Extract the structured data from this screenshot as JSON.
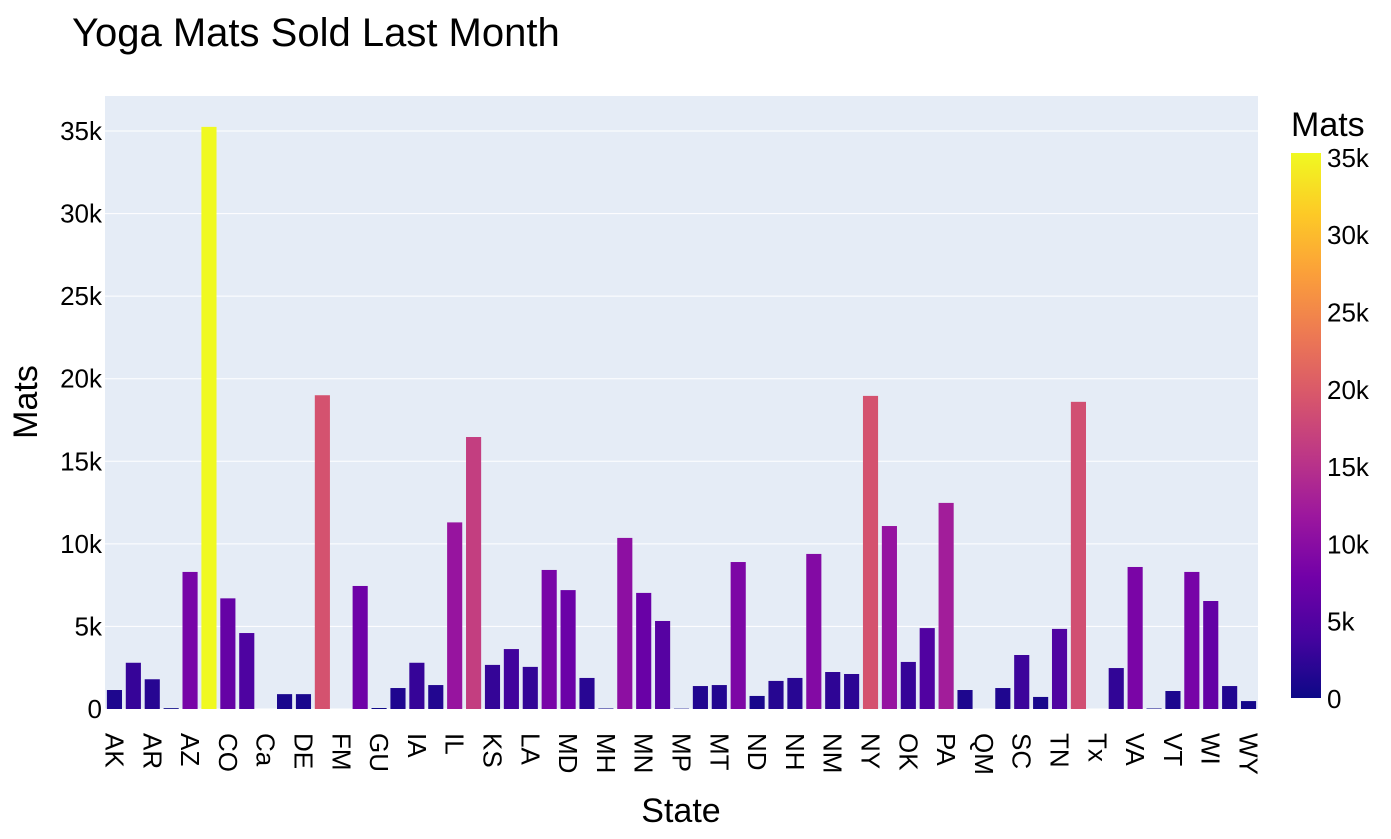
{
  "chart_data": {
    "type": "bar",
    "title": "Yoga Mats Sold Last Month",
    "x_label": "State",
    "y_label": "Mats",
    "categories": [
      "AK",
      null,
      "AR",
      null,
      "AZ",
      null,
      "CO",
      null,
      "Ca",
      null,
      "DE",
      null,
      "FM",
      null,
      "GU",
      null,
      "IA",
      null,
      "IL",
      null,
      "KS",
      null,
      "LA",
      null,
      "MD",
      null,
      "MH",
      null,
      "MN",
      null,
      "MP",
      null,
      "MT",
      null,
      "ND",
      null,
      "NH",
      null,
      "NM",
      null,
      "NY",
      null,
      "OK",
      null,
      "PA",
      null,
      "QM",
      null,
      "SC",
      null,
      "TN",
      null,
      "Tx",
      null,
      "VA",
      null,
      "VT",
      null,
      "WI",
      null,
      "WY"
    ],
    "values": [
      1150,
      2800,
      1800,
      50,
      8300,
      35250,
      6700,
      4600,
      0,
      900,
      900,
      19000,
      0,
      7450,
      60,
      1270,
      2800,
      1450,
      11300,
      16470,
      2670,
      3630,
      2550,
      8420,
      7200,
      1880,
      30,
      10360,
      7030,
      5330,
      20,
      1390,
      1450,
      8900,
      790,
      1700,
      1880,
      9390,
      2240,
      2120,
      18960,
      11080,
      2850,
      4900,
      12480,
      1150,
      0,
      1270,
      3270,
      730,
      4850,
      18600,
      0,
      2480,
      8600,
      30,
      1090,
      8300,
      6540,
      1390,
      480
    ],
    "ylim": [
      0,
      37120
    ],
    "yticks": [
      0,
      {
        "value": 5000,
        "label": "5k"
      },
      {
        "value": 10000,
        "label": "10k"
      },
      {
        "value": 15000,
        "label": "15k"
      },
      {
        "value": 20000,
        "label": "20k"
      },
      {
        "value": 25000,
        "label": "25k"
      },
      {
        "value": 30000,
        "label": "30k"
      },
      {
        "value": 35000,
        "label": "35k"
      }
    ],
    "grid": true,
    "colorscale": [
      "#0d0887",
      "#46039f",
      "#7201a8",
      "#9c179e",
      "#bd3786",
      "#d8576b",
      "#ed7953",
      "#fb9f3a",
      "#fdca26",
      "#f0f921"
    ],
    "colorbar": {
      "title": "Mats",
      "ticks": [
        0,
        {
          "value": 5000,
          "label": "5k"
        },
        {
          "value": 10000,
          "label": "10k"
        },
        {
          "value": 15000,
          "label": "15k"
        },
        {
          "value": 20000,
          "label": "20k"
        },
        {
          "value": 25000,
          "label": "25k"
        },
        {
          "value": 30000,
          "label": "30k"
        },
        {
          "value": 35000,
          "label": "35k"
        }
      ]
    }
  }
}
